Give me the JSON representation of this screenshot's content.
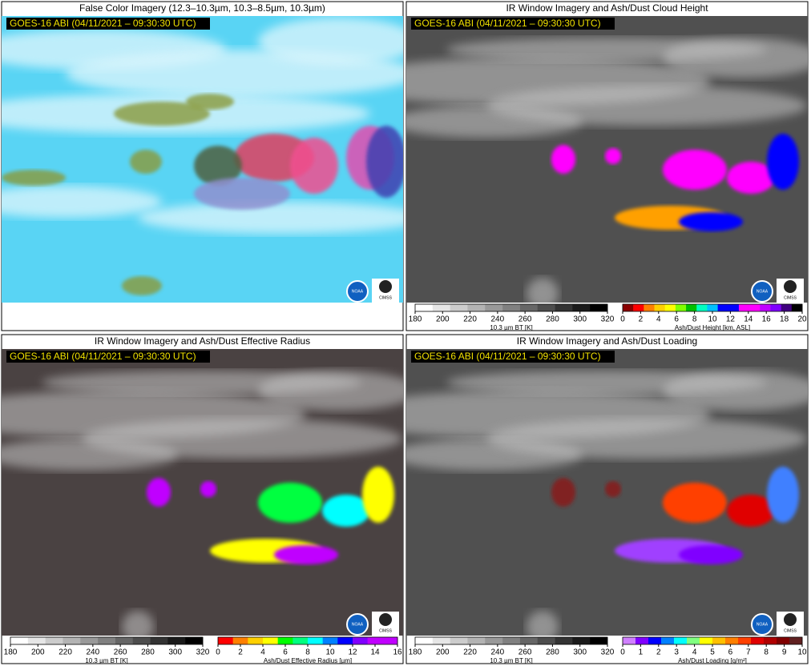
{
  "logo_noaa": "NOAA",
  "logo_cimss": "CIMSS",
  "panels": [
    {
      "title": "False Color Imagery (12.3–10.3µm, 10.3–8.5µm, 10.3µm)",
      "timestamp": "GOES-16 ABI (04/11/2021 – 09:30:30 UTC)",
      "colorbars": []
    },
    {
      "title": "IR Window Imagery and Ash/Dust Cloud Height",
      "timestamp": "GOES-16 ABI (04/11/2021 – 09:30:30 UTC)",
      "colorbars": [
        {
          "label": "10.3 µm BT [K]",
          "lim": [
            180,
            320
          ],
          "ticks": [
            180,
            200,
            220,
            240,
            260,
            280,
            300,
            320
          ],
          "colors": [
            "#ffffff",
            "#e6e6e6",
            "#cccccc",
            "#b3b3b3",
            "#999999",
            "#808080",
            "#666666",
            "#4d4d4d",
            "#333333",
            "#1a1a1a",
            "#000000"
          ]
        },
        {
          "label": "Ash/Dust Height [km, ASL]",
          "lim": [
            0,
            20
          ],
          "ticks": [
            0,
            2,
            4,
            6,
            8,
            10,
            12,
            14,
            16,
            18,
            20
          ],
          "colors": [
            "#8b0000",
            "#ff0000",
            "#ff8000",
            "#ffd000",
            "#ffff00",
            "#80ff00",
            "#00c000",
            "#00ffc0",
            "#00c0ff",
            "#0000ff",
            "#0000ff",
            "#ff00ff",
            "#ff00ff",
            "#c000ff",
            "#8000ff",
            "#400080",
            "#000000"
          ]
        }
      ]
    },
    {
      "title": "IR Window Imagery and Ash/Dust Effective Radius",
      "timestamp": "GOES-16 ABI (04/11/2021 – 09:30:30 UTC)",
      "colorbars": [
        {
          "label": "10.3 µm BT [K]",
          "lim": [
            180,
            320
          ],
          "ticks": [
            180,
            200,
            220,
            240,
            260,
            280,
            300,
            320
          ],
          "colors": [
            "#ffffff",
            "#e6e6e6",
            "#cccccc",
            "#b3b3b3",
            "#999999",
            "#808080",
            "#666666",
            "#4d4d4d",
            "#333333",
            "#1a1a1a",
            "#000000"
          ]
        },
        {
          "label": "Ash/Dust Effective Radius [µm]",
          "lim": [
            0,
            16
          ],
          "ticks": [
            0,
            2,
            4,
            6,
            8,
            10,
            12,
            14,
            16
          ],
          "colors": [
            "#ff0000",
            "#ff8000",
            "#ffd000",
            "#ffff00",
            "#00ff00",
            "#00ff80",
            "#00ffff",
            "#0080ff",
            "#0000ff",
            "#8000ff",
            "#c000ff",
            "#c000ff"
          ]
        }
      ]
    },
    {
      "title": "IR Window Imagery and Ash/Dust Loading",
      "timestamp": "GOES-16 ABI (04/11/2021 – 09:30:30 UTC)",
      "colorbars": [
        {
          "label": "10.3 µm BT [K]",
          "lim": [
            180,
            320
          ],
          "ticks": [
            180,
            200,
            220,
            240,
            260,
            280,
            300,
            320
          ],
          "colors": [
            "#ffffff",
            "#e6e6e6",
            "#cccccc",
            "#b3b3b3",
            "#999999",
            "#808080",
            "#666666",
            "#4d4d4d",
            "#333333",
            "#1a1a1a",
            "#000000"
          ]
        },
        {
          "label": "Ash/Dust Loading [g/m²]",
          "lim": [
            0,
            10
          ],
          "ticks": [
            0,
            1,
            2,
            3,
            4,
            5,
            6,
            7,
            8,
            9,
            10
          ],
          "colors": [
            "#d080ff",
            "#8000ff",
            "#0000ff",
            "#0080ff",
            "#00ffff",
            "#80ff80",
            "#ffff00",
            "#ffc000",
            "#ff8000",
            "#ff4000",
            "#e00000",
            "#b00000",
            "#800000",
            "#602020"
          ]
        }
      ]
    }
  ]
}
